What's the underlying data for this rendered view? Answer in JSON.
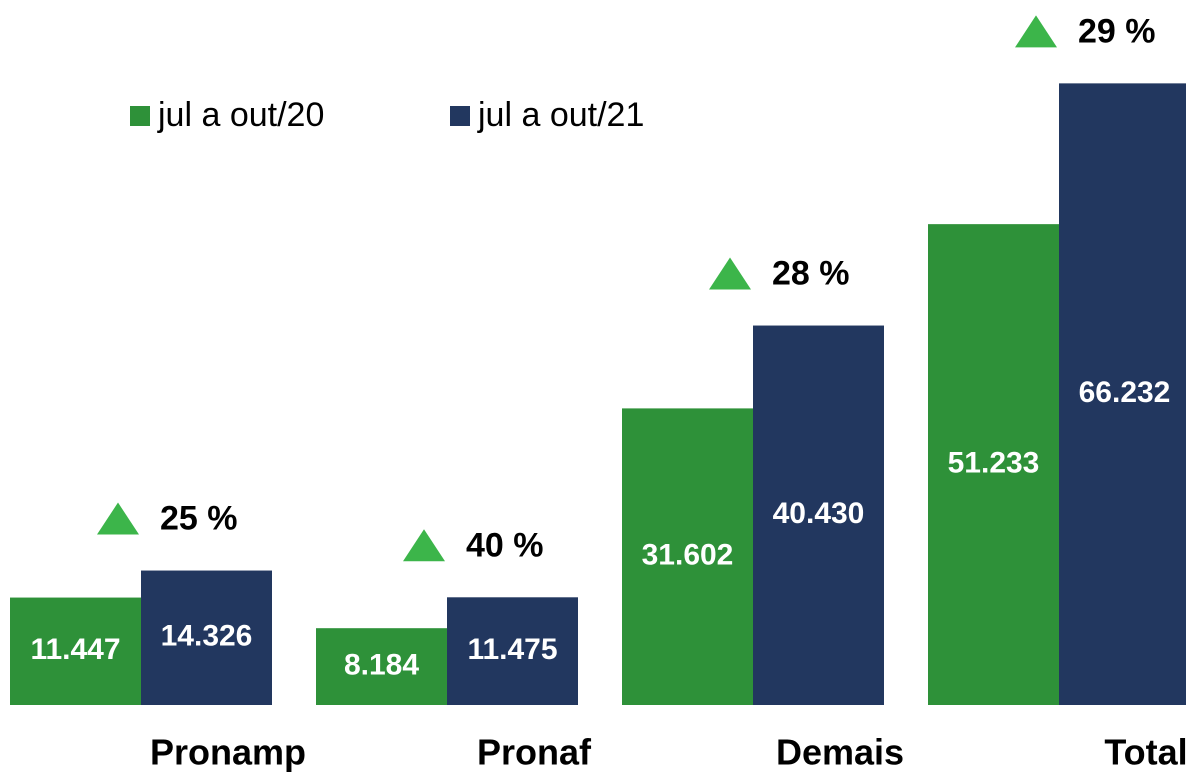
{
  "chart_data": {
    "type": "bar",
    "categories": [
      "Pronamp",
      "Pronaf",
      "Demais",
      "Total"
    ],
    "series": [
      {
        "name": "jul a out/20",
        "color": "#2e9139",
        "values": [
          11447,
          8184,
          31602,
          51233
        ],
        "value_labels": [
          "11.447",
          "8.184",
          "31.602",
          "51.233"
        ]
      },
      {
        "name": "jul a out/21",
        "color": "#22375f",
        "values": [
          14326,
          11475,
          40430,
          66232
        ],
        "value_labels": [
          "14.326",
          "11.475",
          "40.430",
          "66.232"
        ]
      }
    ],
    "annotations": [
      "25 %",
      "40 %",
      "28 %",
      "29 %"
    ],
    "annotation_color": "#3cb54a",
    "ylim": [
      0,
      70000
    ]
  }
}
